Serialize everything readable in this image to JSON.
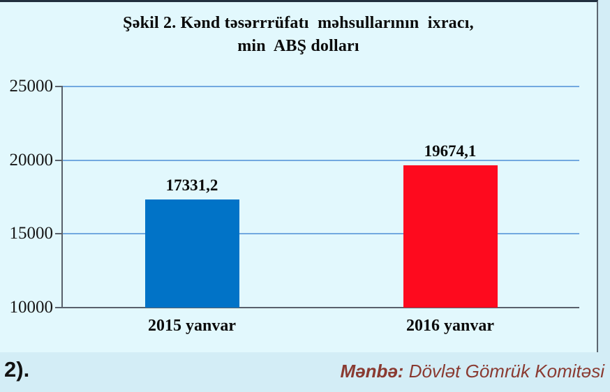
{
  "page": {
    "footnote": "2).",
    "source_prefix": "Mənbə:",
    "source_text": " Dövlət Gömrük Komitəsi"
  },
  "chart_data": {
    "type": "bar",
    "title_line1": "Şəkil 2. Kənd təsərrrüfatı  məhsullarının  ixracı,",
    "title_line2": "min  ABŞ dolları",
    "categories": [
      "2015 yanvar",
      "2016 yanvar"
    ],
    "values": [
      17331.2,
      19674.1
    ],
    "value_labels": [
      "17331,2",
      "19674,1"
    ],
    "bar_colors": [
      "#0173c7",
      "#fe0a1e"
    ],
    "ylim": [
      10000,
      25000
    ],
    "yticks": [
      25000,
      20000,
      15000,
      10000
    ],
    "grid": true,
    "legend": "none",
    "gridline_color": "#72a9e0",
    "axis_color": "#59616b",
    "plot_background": "#e2f8fd",
    "outer_background": "#d3edf6",
    "source_color": "#8a3a31"
  }
}
